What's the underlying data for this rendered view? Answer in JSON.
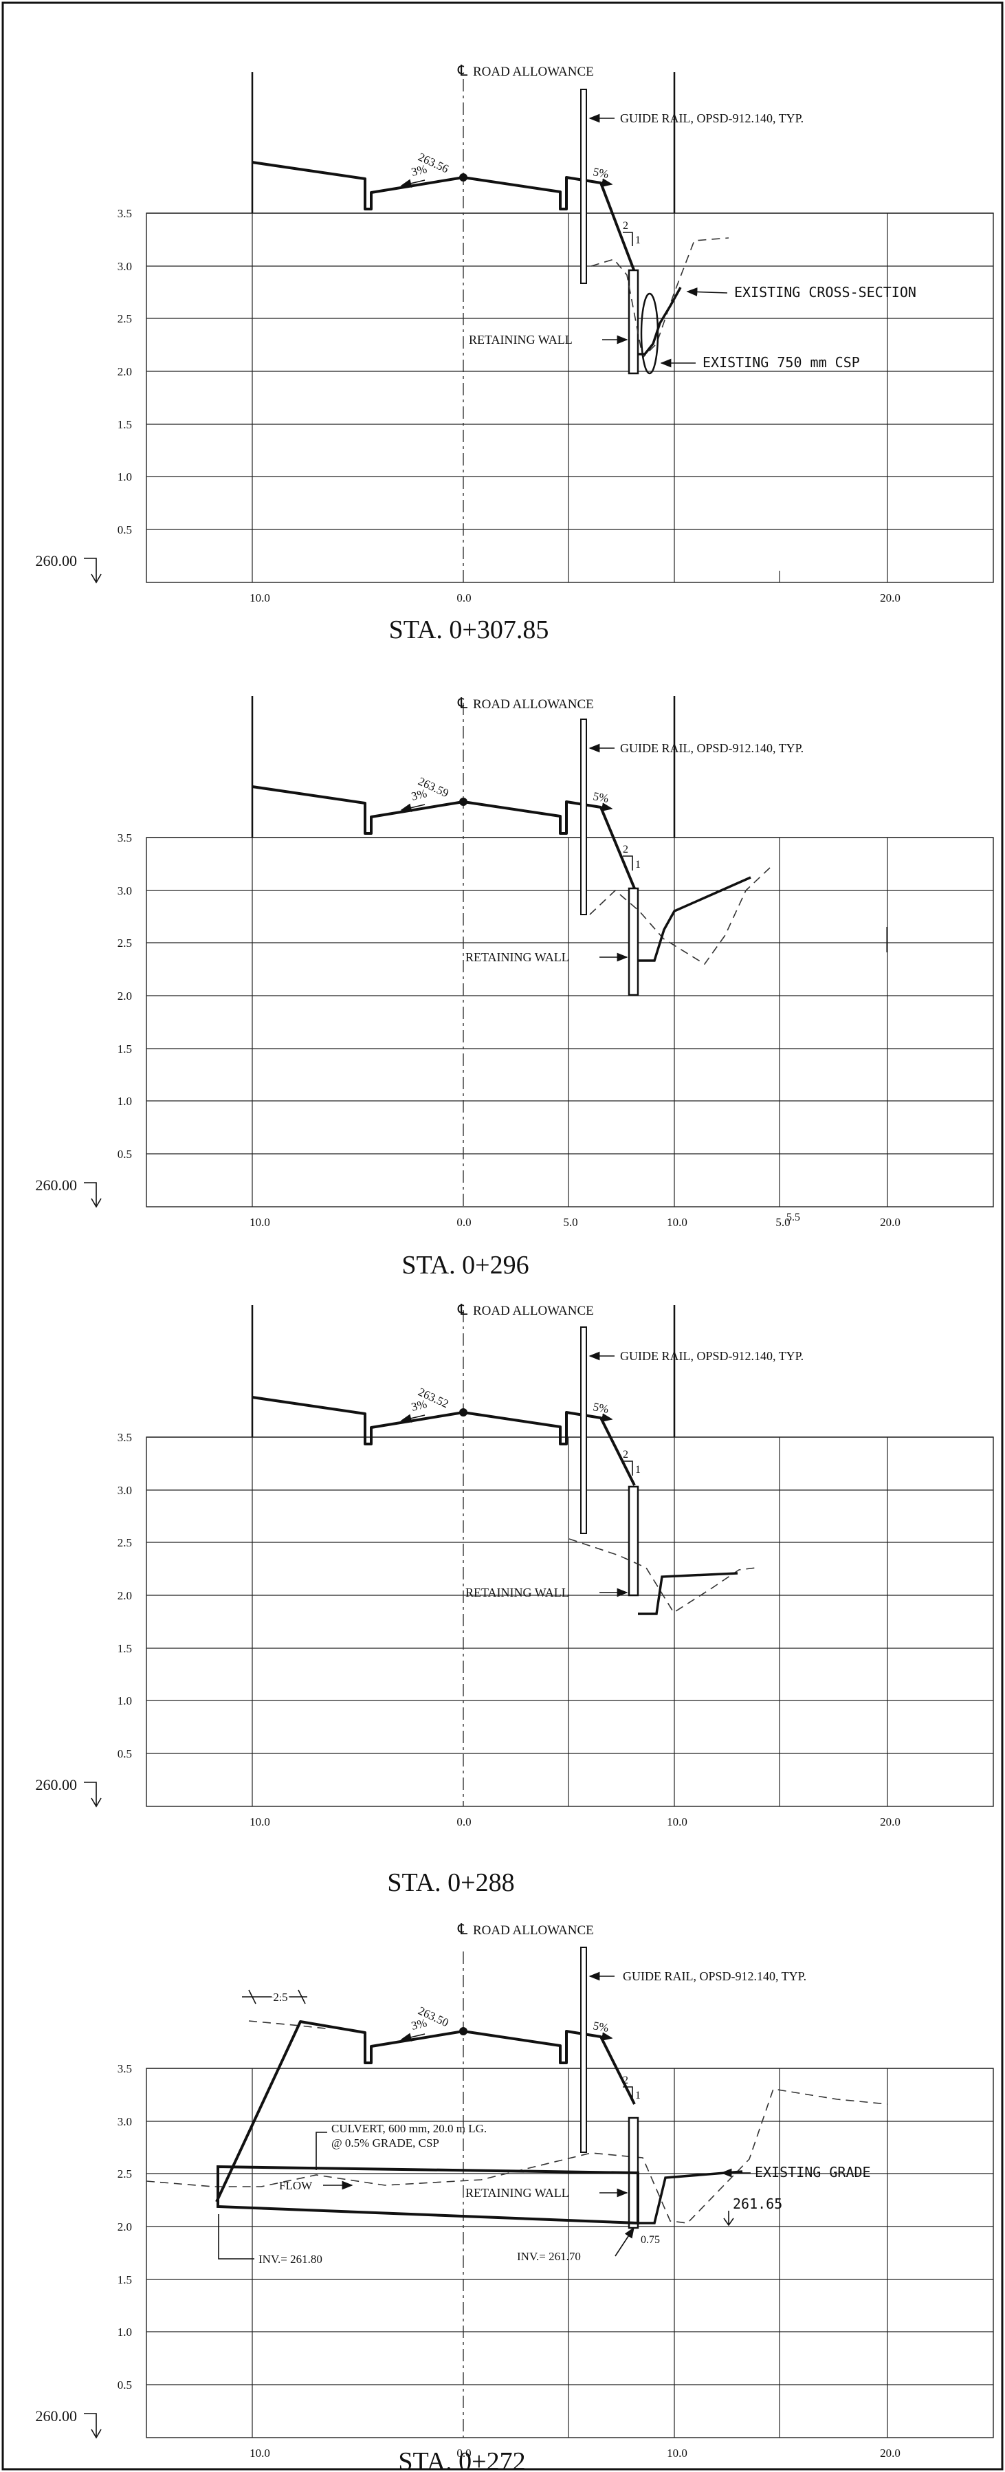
{
  "drawing": {
    "cl_symbol": "℄",
    "y_ticks": [
      "3.5",
      "3.0",
      "2.5",
      "2.0",
      "1.5",
      "1.0",
      "0.5"
    ],
    "datum_label": "260.00",
    "sections": [
      {
        "title": "STA. 0+307.85",
        "road_allowance": "ROAD ALLOWANCE",
        "guide_rail": "GUIDE RAIL, OPSD-912.140, TYP.",
        "crown_elev": "263.56",
        "slope_left": "3%",
        "slope_right": "5%",
        "ratio_top": "2",
        "ratio_side": "1",
        "retaining_wall": "RETAINING WALL",
        "existing_cross_section": "EXISTING CROSS-SECTION",
        "existing_csp": "EXISTING 750 mm CSP",
        "x_ticks": [
          "10.0",
          "0.0",
          "20.0"
        ]
      },
      {
        "title": "STA. 0+296",
        "road_allowance": "ROAD ALLOWANCE",
        "guide_rail": "GUIDE RAIL, OPSD-912.140, TYP.",
        "crown_elev": "263.59",
        "slope_left": "3%",
        "slope_right": "5%",
        "ratio_top": "2",
        "ratio_side": "1",
        "retaining_wall": "RETAINING WALL",
        "x_ticks": [
          "10.0",
          "0.0",
          "5.0",
          "10.0",
          "5.0",
          "5.5",
          "20.0"
        ]
      },
      {
        "title": "STA. 0+288",
        "road_allowance": "ROAD ALLOWANCE",
        "guide_rail": "GUIDE RAIL, OPSD-912.140, TYP.",
        "crown_elev": "263.52",
        "slope_left": "3%",
        "slope_right": "5%",
        "ratio_top": "2",
        "ratio_side": "1",
        "retaining_wall": "RETAINING WALL",
        "x_ticks": [
          "10.0",
          "0.0",
          "10.0",
          "20.0"
        ]
      },
      {
        "title": "STA. 0+272",
        "road_allowance": "ROAD ALLOWANCE",
        "guide_rail": "GUIDE RAIL, OPSD-912.140, TYP.",
        "crown_elev": "263.50",
        "slope_left": "3%",
        "slope_right": "5%",
        "ratio_top": "2",
        "ratio_side": "1",
        "retaining_wall": "RETAINING WALL",
        "dim_width": "2.5",
        "culvert_line1": "CULVERT, 600 mm, 20.0 m LG.",
        "culvert_line2": "@ 0.5% GRADE, CSP",
        "flow": "FLOW",
        "existing_grade": "EXISTING GRADE",
        "elev_callout": "261.65",
        "inv_left": "INV.= 261.80",
        "inv_right": "INV.= 261.70",
        "dim_small": "0.75",
        "x_ticks": [
          "10.0",
          "0.0",
          "10.0",
          "20.0"
        ]
      }
    ]
  }
}
